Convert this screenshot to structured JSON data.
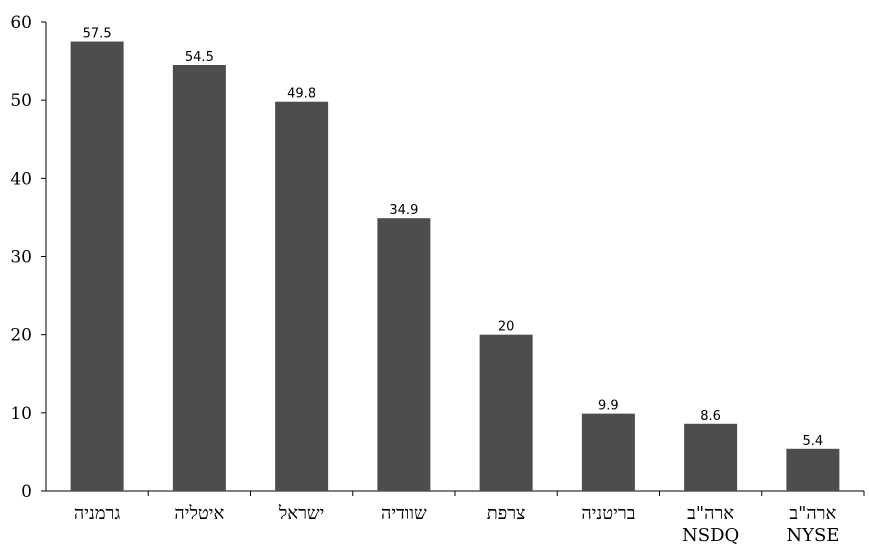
{
  "chart_data": {
    "type": "bar",
    "categories": [
      [
        "גרמניה"
      ],
      [
        "איטליה"
      ],
      [
        "ישראל"
      ],
      [
        "שוודיה"
      ],
      [
        "צרפת"
      ],
      [
        "בריטניה"
      ],
      [
        "ארה\"ב",
        "NSDQ"
      ],
      [
        "ארה\"ב",
        "NYSE"
      ]
    ],
    "values": [
      57.5,
      54.5,
      49.8,
      34.9,
      20,
      9.9,
      8.6,
      5.4
    ],
    "value_labels": [
      "57.5",
      "54.5",
      "49.8",
      "34.9",
      "20",
      "9.9",
      "8.6",
      "5.4"
    ],
    "ylim": [
      0,
      60
    ],
    "yticks": [
      0,
      10,
      20,
      30,
      40,
      50,
      60
    ],
    "bar_color": "#4d4d4d",
    "axis_color": "#000000",
    "grid": false,
    "legend": "none"
  }
}
